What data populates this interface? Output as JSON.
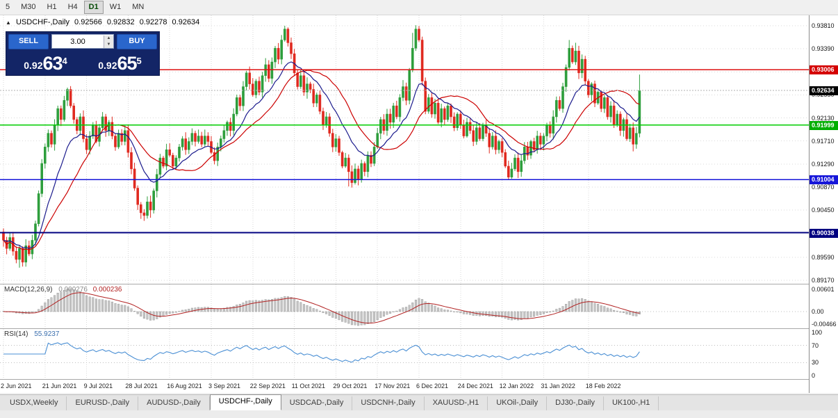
{
  "toolbar": {
    "periods": [
      {
        "label": "5",
        "active": false
      },
      {
        "label": "M30",
        "active": false
      },
      {
        "label": "H1",
        "active": false
      },
      {
        "label": "H4",
        "active": false
      },
      {
        "label": "D1",
        "active": true
      },
      {
        "label": "W1",
        "active": false
      },
      {
        "label": "MN",
        "active": false
      }
    ]
  },
  "chart": {
    "title": "USDCHF-,Daily",
    "open": "0.92566",
    "high": "0.92832",
    "low": "0.92278",
    "close": "0.92634"
  },
  "one_click": {
    "sell_label": "SELL",
    "buy_label": "BUY",
    "volume": "3.00",
    "sell": {
      "base": "0.92",
      "pips": "63",
      "sup": "4"
    },
    "buy": {
      "base": "0.92",
      "pips": "65",
      "sup": "5"
    }
  },
  "price_axis": {
    "labels": [
      "0.93810",
      "0.93390",
      "0.92970",
      "0.92550",
      "0.92130",
      "0.91710",
      "0.91290",
      "0.90870",
      "0.90450",
      "0.90030",
      "0.89590",
      "0.89170"
    ]
  },
  "levels": [
    {
      "price": 0.93006,
      "label": "0.93006",
      "color": "#dd1111",
      "badge_bg": "#d40000"
    },
    {
      "price": 0.91999,
      "label": "0.91999",
      "color": "#00cc00",
      "badge_bg": "#00ae00"
    },
    {
      "price": 0.91004,
      "label": "0.91004",
      "color": "#1616d9",
      "badge_bg": "#1616d9"
    },
    {
      "price": 0.90038,
      "label": "0.90038",
      "color": "#000080",
      "badge_bg": "#000080"
    }
  ],
  "current_price": {
    "value": 0.92634,
    "label": "0.92634",
    "badge_bg": "#000000"
  },
  "macd": {
    "title": "MACD(12,26,9)",
    "value_main": "0.000276",
    "value_signal": "0.000236",
    "axis": [
      "0.00601",
      "0.00",
      "-0.00466"
    ]
  },
  "rsi": {
    "title": "RSI(14)",
    "value": "55.9237",
    "axis": [
      "100",
      "70",
      "30",
      "0"
    ],
    "level_lines": [
      70,
      30
    ]
  },
  "tabs": {
    "active_index": 3,
    "items": [
      "USDX,Weekly",
      "EURUSD-,Daily",
      "AUDUSD-,Daily",
      "USDCHF-,Daily",
      "USDCAD-,Daily",
      "USDCNH-,Daily",
      "XAUUSD-,H1",
      "UKOil-,Daily",
      "DJ30-,Daily",
      "UK100-,H1"
    ]
  },
  "colors": {
    "bull": "#2e9e3c",
    "bear": "#e02a20",
    "ma_fast": "#1a1a8c",
    "ma_slow": "#cc0000",
    "grid": "#d9d9d9",
    "hist_fill": "#c6c6c6",
    "hist_stroke": "#8f8f8f",
    "macd_signal": "#b22222",
    "rsi_line": "#4a8fd4",
    "bid_line": "#b0b0b0"
  },
  "chart_data": {
    "type": "candlestick",
    "symbol": "USDCHF-",
    "timeframe": "Daily",
    "title": "USDCHF-,Daily",
    "ylim": [
      0.8917,
      0.9381
    ],
    "x_ticks": {
      "indices": [
        0,
        13,
        26,
        39,
        52,
        65,
        78,
        91,
        104,
        117,
        130,
        143,
        156,
        169,
        183
      ],
      "labels": [
        "2 Jun 2021",
        "21 Jun 2021",
        "9 Jul 2021",
        "28 Jul 2021",
        "16 Aug 2021",
        "3 Sep 2021",
        "22 Sep 2021",
        "11 Oct 2021",
        "29 Oct 2021",
        "17 Nov 2021",
        "6 Dec 2021",
        "24 Dec 2021",
        "12 Jan 2022",
        "31 Jan 2022",
        "18 Feb 2022"
      ]
    },
    "first_open": 0.9005,
    "closes": [
      0.899,
      0.8975,
      0.8995,
      0.897,
      0.8955,
      0.8975,
      0.895,
      0.898,
      0.8965,
      0.899,
      0.902,
      0.9075,
      0.913,
      0.916,
      0.9185,
      0.9165,
      0.92,
      0.923,
      0.921,
      0.9245,
      0.9265,
      0.9235,
      0.921,
      0.919,
      0.9215,
      0.9175,
      0.9155,
      0.918,
      0.92,
      0.917,
      0.9195,
      0.9215,
      0.919,
      0.9205,
      0.918,
      0.916,
      0.9185,
      0.917,
      0.919,
      0.915,
      0.912,
      0.9085,
      0.9055,
      0.904,
      0.9035,
      0.906,
      0.9045,
      0.908,
      0.911,
      0.914,
      0.9125,
      0.9155,
      0.9145,
      0.9125,
      0.914,
      0.916,
      0.9175,
      0.9155,
      0.917,
      0.9185,
      0.917,
      0.918,
      0.9165,
      0.918,
      0.917,
      0.915,
      0.9135,
      0.916,
      0.9175,
      0.919,
      0.9205,
      0.919,
      0.922,
      0.925,
      0.9235,
      0.927,
      0.9295,
      0.9275,
      0.9255,
      0.928,
      0.926,
      0.929,
      0.931,
      0.9285,
      0.9315,
      0.934,
      0.932,
      0.9355,
      0.9375,
      0.935,
      0.933,
      0.9295,
      0.927,
      0.929,
      0.926,
      0.9275,
      0.9265,
      0.924,
      0.9255,
      0.9225,
      0.92,
      0.9215,
      0.9185,
      0.916,
      0.9175,
      0.915,
      0.9125,
      0.914,
      0.9115,
      0.9095,
      0.912,
      0.91,
      0.913,
      0.9115,
      0.9145,
      0.913,
      0.916,
      0.9185,
      0.921,
      0.919,
      0.922,
      0.9205,
      0.9235,
      0.9215,
      0.925,
      0.927,
      0.9245,
      0.93,
      0.934,
      0.9375,
      0.9355,
      0.928,
      0.9225,
      0.925,
      0.922,
      0.924,
      0.9205,
      0.923,
      0.921,
      0.9235,
      0.9215,
      0.9195,
      0.922,
      0.92,
      0.918,
      0.9205,
      0.919,
      0.917,
      0.9195,
      0.9175,
      0.92,
      0.9185,
      0.916,
      0.918,
      0.9155,
      0.917,
      0.915,
      0.9125,
      0.9105,
      0.912,
      0.914,
      0.9115,
      0.9135,
      0.916,
      0.9145,
      0.917,
      0.9155,
      0.918,
      0.9165,
      0.918,
      0.92,
      0.9185,
      0.9215,
      0.9245,
      0.923,
      0.927,
      0.9305,
      0.934,
      0.9315,
      0.9335,
      0.9295,
      0.932,
      0.928,
      0.9255,
      0.9275,
      0.924,
      0.926,
      0.923,
      0.925,
      0.9215,
      0.9235,
      0.92,
      0.922,
      0.919,
      0.921,
      0.9175,
      0.9195,
      0.9165,
      0.9185,
      0.9263
    ],
    "wick_overrides": {
      "5": {
        "l": 0.894
      },
      "6": {
        "l": 0.8942
      },
      "43": {
        "l": 0.9029
      },
      "46": {
        "l": 0.9031
      },
      "88": {
        "h": 0.9381
      },
      "89": {
        "h": 0.9378
      },
      "108": {
        "l": 0.9088
      },
      "109": {
        "l": 0.9086
      },
      "111": {
        "l": 0.909
      },
      "128": {
        "h": 0.9368
      },
      "129": {
        "h": 0.9382
      },
      "158": {
        "l": 0.91
      },
      "159": {
        "l": 0.9102
      },
      "177": {
        "h": 0.9355
      },
      "179": {
        "h": 0.935
      },
      "197": {
        "l": 0.9152
      },
      "199": {
        "h": 0.9292
      }
    }
  }
}
